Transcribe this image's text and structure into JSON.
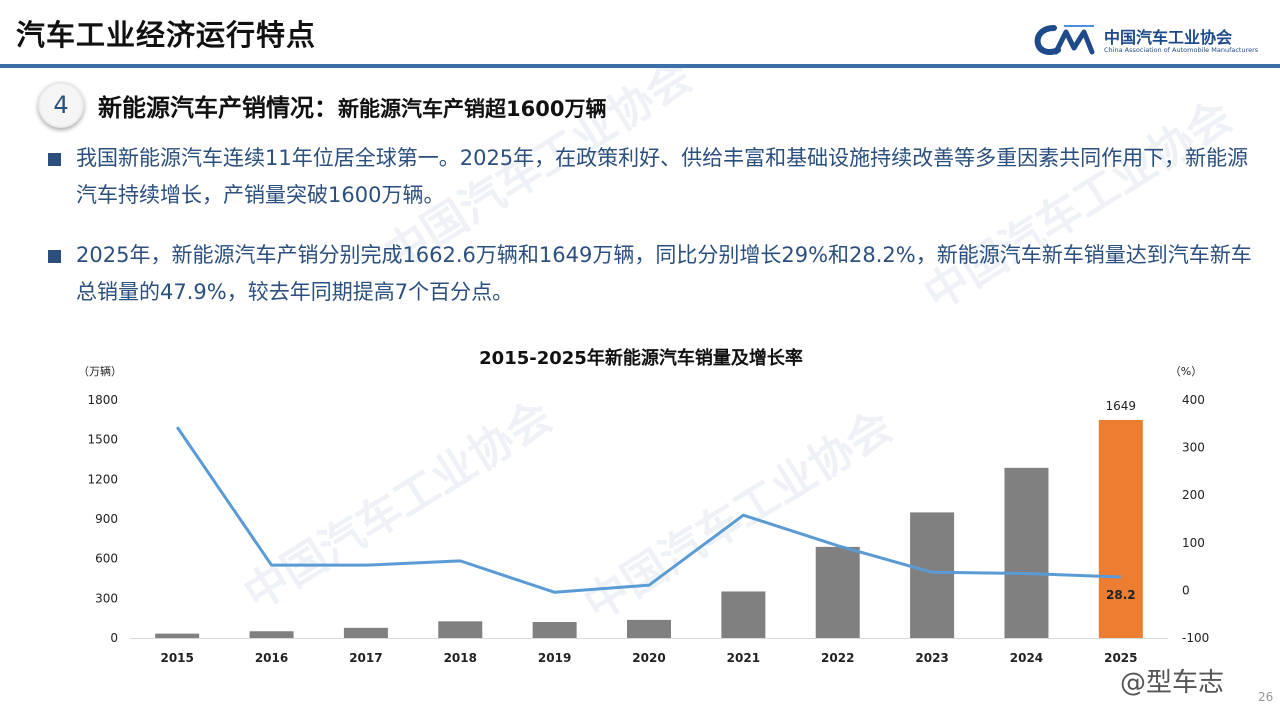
{
  "header": {
    "title": "汽车工业经济运行特点",
    "logo_cn": "中国汽车工业协会",
    "logo_en": "China Association of Automobile Manufacturers"
  },
  "section": {
    "number": "4",
    "title": "新能源汽车产销情况：",
    "subtitle": "新能源汽车产销超1600万辆"
  },
  "bullets": [
    "我国新能源汽车连续11年位居全球第一。2025年，在政策利好、供给丰富和基础设施持续改善等多重因素共同作用下，新能源汽车持续增长，产销量突破1600万辆。",
    "2025年，新能源汽车产销分别完成1662.6万辆和1649万辆，同比分别增长29%和28.2%，新能源汽车新车销量达到汽车新车总销量的47.9%，较去年同期提高7个百分点。"
  ],
  "footer": {
    "weibo": "@型车志",
    "page": "26"
  },
  "colors": {
    "bar": "#808080",
    "highlight_bar": "#ed7d31",
    "line": "#5b9bd5",
    "accent": "#2b4f7e"
  },
  "chart_data": {
    "type": "bar",
    "title": "2015-2025年新能源汽车销量及增长率",
    "y_unit_left": "（万辆）",
    "y_unit_right": "（%）",
    "categories": [
      "2015",
      "2016",
      "2017",
      "2018",
      "2019",
      "2020",
      "2021",
      "2022",
      "2023",
      "2024",
      "2025"
    ],
    "series": [
      {
        "type": "bar",
        "axis": "left",
        "values": [
          33,
          51,
          77,
          126,
          121,
          137,
          352,
          689,
          950,
          1287,
          1649
        ],
        "data_labels": {
          "10": "1649"
        }
      },
      {
        "type": "line",
        "axis": "right",
        "values": [
          343,
          53,
          53,
          62,
          -4,
          11,
          158,
          94,
          38,
          35.5,
          28.2
        ],
        "data_labels": {
          "10": "28.2"
        }
      }
    ],
    "ylim_left": [
      0,
      1800
    ],
    "yticks_left": [
      0,
      300,
      600,
      900,
      1200,
      1500,
      1800
    ],
    "ylim_right": [
      -100,
      400
    ],
    "yticks_right": [
      -100,
      0,
      100,
      200,
      300,
      400
    ],
    "highlight_index": 10,
    "grid": false,
    "legend": "none"
  }
}
